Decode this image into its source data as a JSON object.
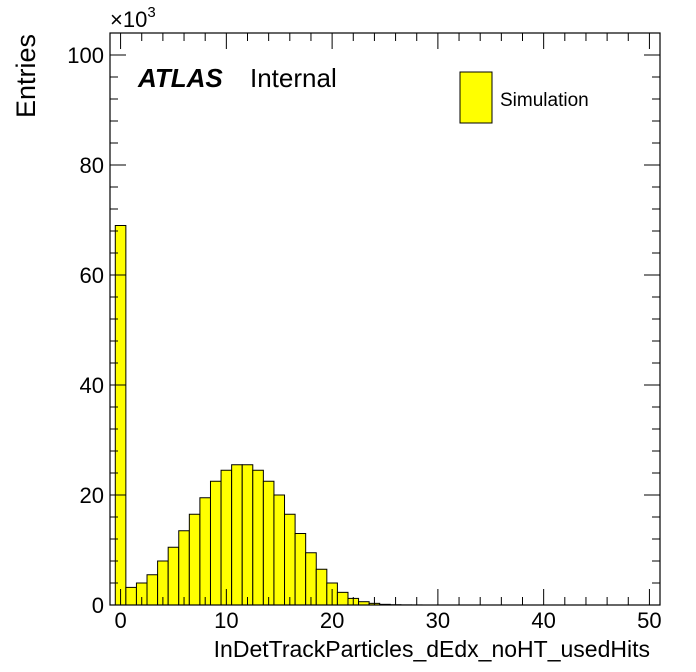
{
  "chart_data": {
    "type": "bar",
    "xlabel": "InDetTrackParticles_dEdx_noHT_usedHits",
    "ylabel": "Entries",
    "y_multiplier_label": "×10",
    "y_multiplier_exponent": "3",
    "xlim": [
      -1,
      51
    ],
    "ylim": [
      0,
      104
    ],
    "x_ticks": [
      0,
      10,
      20,
      30,
      40,
      50
    ],
    "y_ticks": [
      0,
      20,
      40,
      60,
      80,
      100
    ],
    "bin_width": 1,
    "bin_edges_start": -0.5,
    "series": [
      {
        "name": "Simulation",
        "color": "#ffff00",
        "values": [
          69.0,
          3.2,
          4.0,
          5.5,
          8.0,
          10.5,
          13.5,
          16.5,
          19.5,
          22.5,
          24.5,
          25.5,
          25.5,
          24.5,
          22.5,
          20.0,
          16.5,
          13.0,
          9.5,
          6.5,
          4.0,
          2.3,
          1.2,
          0.6,
          0.3,
          0.12,
          0.05,
          0.02,
          0.01,
          0,
          0,
          0,
          0,
          0,
          0,
          0,
          0,
          0,
          0,
          0,
          0,
          0,
          0,
          0,
          0,
          0,
          0,
          0,
          0,
          0,
          0
        ]
      }
    ],
    "atlas_label": "ATLAS",
    "atlas_sublabel": "Internal",
    "legend_position": "top-right",
    "grid": false
  }
}
